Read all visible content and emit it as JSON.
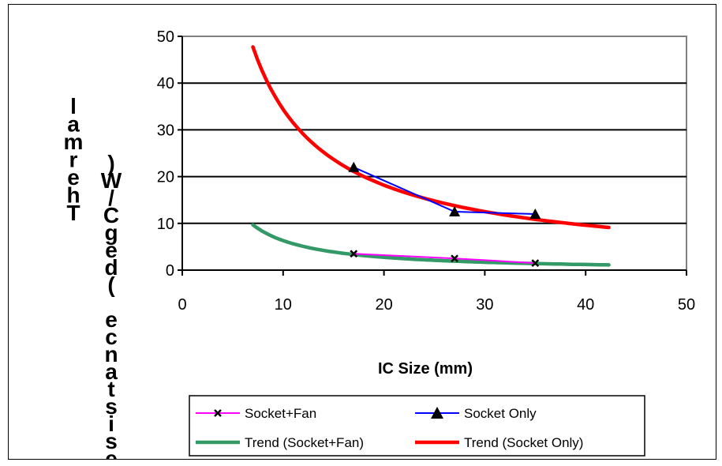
{
  "chart_data": {
    "type": "line",
    "title": "",
    "xlabel": "IC Size (mm)",
    "ylabel": "Thermal Resistance (degC/W)",
    "xlim": [
      0,
      50
    ],
    "ylim": [
      0,
      50
    ],
    "xticks": [
      "0",
      "10",
      "20",
      "30",
      "40",
      "50"
    ],
    "yticks": [
      "0",
      "10",
      "20",
      "30",
      "40",
      "50"
    ],
    "grid": "horizontal",
    "legend_position": "bottom",
    "series": [
      {
        "name": "Socket+Fan",
        "x": [
          17,
          27,
          35
        ],
        "y": [
          3.5,
          2.5,
          1.5
        ],
        "color": "#ff00ff",
        "marker": "x"
      },
      {
        "name": "Socket Only",
        "x": [
          17,
          27,
          35
        ],
        "y": [
          22,
          12.5,
          12
        ],
        "color": "#0000ff",
        "marker": "triangle"
      },
      {
        "name": "Trend (Socket+Fan)",
        "type": "power-trend",
        "x_range": [
          7,
          42.3
        ],
        "coefficient": 100,
        "exponent": -1.2,
        "color": "#339966"
      },
      {
        "name": "Trend (Socket Only)",
        "type": "power-trend",
        "x_range": [
          7,
          42.3
        ],
        "coefficient": 286,
        "exponent": -0.92,
        "color": "#ff0000"
      }
    ]
  }
}
